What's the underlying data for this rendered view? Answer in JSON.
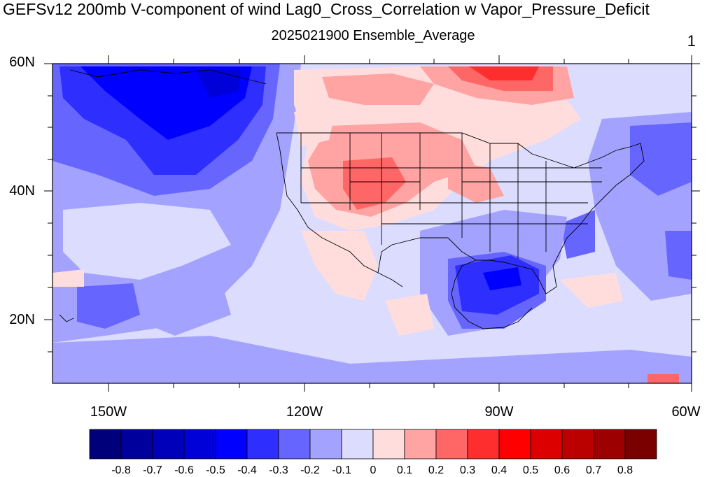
{
  "title": "GEFSv12 200mb V-component of wind Lag0_Cross_Correlation w Vapor_Pressure_Deficit",
  "subtitle": "2025021900 Ensemble_Average",
  "corner_label": "1",
  "lat_labels": [
    "60N",
    "40N",
    "20N"
  ],
  "lon_labels": [
    "150W",
    "120W",
    "90W",
    "60W"
  ],
  "colorbar": {
    "colors": [
      "#00007a",
      "#00009c",
      "#0000bb",
      "#0000d9",
      "#0000ff",
      "#2e2eff",
      "#6666ff",
      "#a3a3ff",
      "#dcdcff",
      "#ffdddd",
      "#ffa3a3",
      "#ff6666",
      "#ff2e2e",
      "#ff0000",
      "#dc0000",
      "#bb0000",
      "#9c0000",
      "#7a0000"
    ],
    "labels": [
      "-0.8",
      "-0.7",
      "-0.6",
      "-0.5",
      "-0.4",
      "-0.3",
      "-0.2",
      "-0.1",
      "0",
      "0.1",
      "0.2",
      "0.3",
      "0.4",
      "0.5",
      "0.6",
      "0.7",
      "0.8"
    ]
  }
}
